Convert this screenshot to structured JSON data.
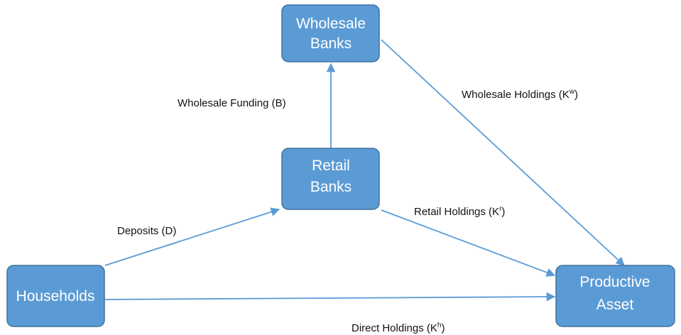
{
  "nodes": [
    {
      "lines": [
        "Wholesale",
        "Banks"
      ]
    },
    {
      "lines": [
        "Retail",
        "Banks"
      ]
    },
    {
      "lines": [
        "Households"
      ]
    },
    {
      "lines": [
        "Productive",
        "Asset"
      ]
    }
  ],
  "edges": [
    {
      "label": {
        "text": "Wholesale Funding (B)"
      }
    },
    {
      "label": {
        "text": "Wholesale Holdings (K",
        "sup": "w",
        "end": ")"
      }
    },
    {
      "label": {
        "text": "Deposits (D)"
      }
    },
    {
      "label": {
        "text": "Retail Holdings (K",
        "sup": "r",
        "end": ")"
      }
    },
    {
      "label": {
        "text": "Direct Holdings (K",
        "sup": "h",
        "end": ")"
      }
    }
  ]
}
